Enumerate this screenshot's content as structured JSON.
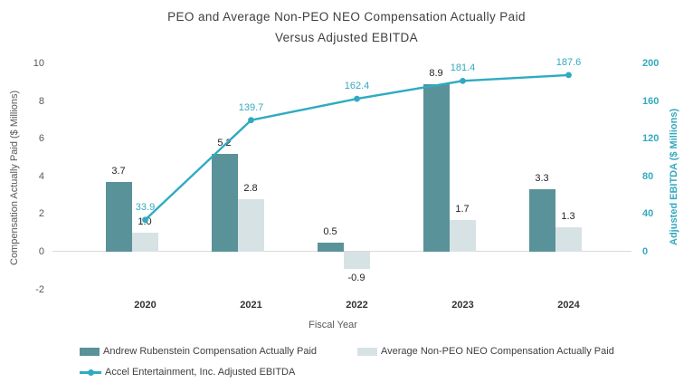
{
  "title": {
    "line1": "PEO and Average Non-PEO NEO Compensation Actually Paid",
    "line2": "Versus Adjusted EBITDA"
  },
  "chart_data": {
    "type": "combo-bar-line",
    "title": "PEO and Average Non-PEO NEO Compensation Actually Paid Versus Adjusted EBITDA",
    "categories": [
      "2020",
      "2021",
      "2022",
      "2023",
      "2024"
    ],
    "series": [
      {
        "name": "Andrew Rubenstein Compensation Actually Paid",
        "type": "bar",
        "axis": "left",
        "values": [
          3.7,
          5.2,
          0.5,
          8.9,
          3.3
        ]
      },
      {
        "name": "Average Non-PEO NEO Compensation Actually Paid",
        "type": "bar",
        "axis": "left",
        "values": [
          1.0,
          2.8,
          -0.9,
          1.7,
          1.3
        ]
      },
      {
        "name": "Accel Entertainment, Inc. Adjusted EBITDA",
        "type": "line",
        "axis": "right",
        "values": [
          33.9,
          139.7,
          162.4,
          181.4,
          187.6
        ]
      }
    ],
    "xlabel": "Fiscal Year",
    "left_axis": {
      "label": "Compensation Actually Paid ($ Millions)",
      "ticks": [
        10,
        8,
        6,
        4,
        2,
        0,
        -2
      ],
      "min": -2,
      "max": 10
    },
    "right_axis": {
      "label": "Adjusted EBITDA ($ Millions)",
      "ticks": [
        200,
        160,
        120,
        80,
        40,
        0
      ],
      "min": 0,
      "max": 200
    },
    "gridlines": "zero-line-only",
    "legend_position": "bottom-left"
  },
  "colors": {
    "bar_dark": "#5a9299",
    "bar_light": "#d7e2e5",
    "line": "#2fabc1",
    "teal_text": "#35a9bf",
    "axis_text": "#595959",
    "gridline": "#d9d9d9"
  }
}
